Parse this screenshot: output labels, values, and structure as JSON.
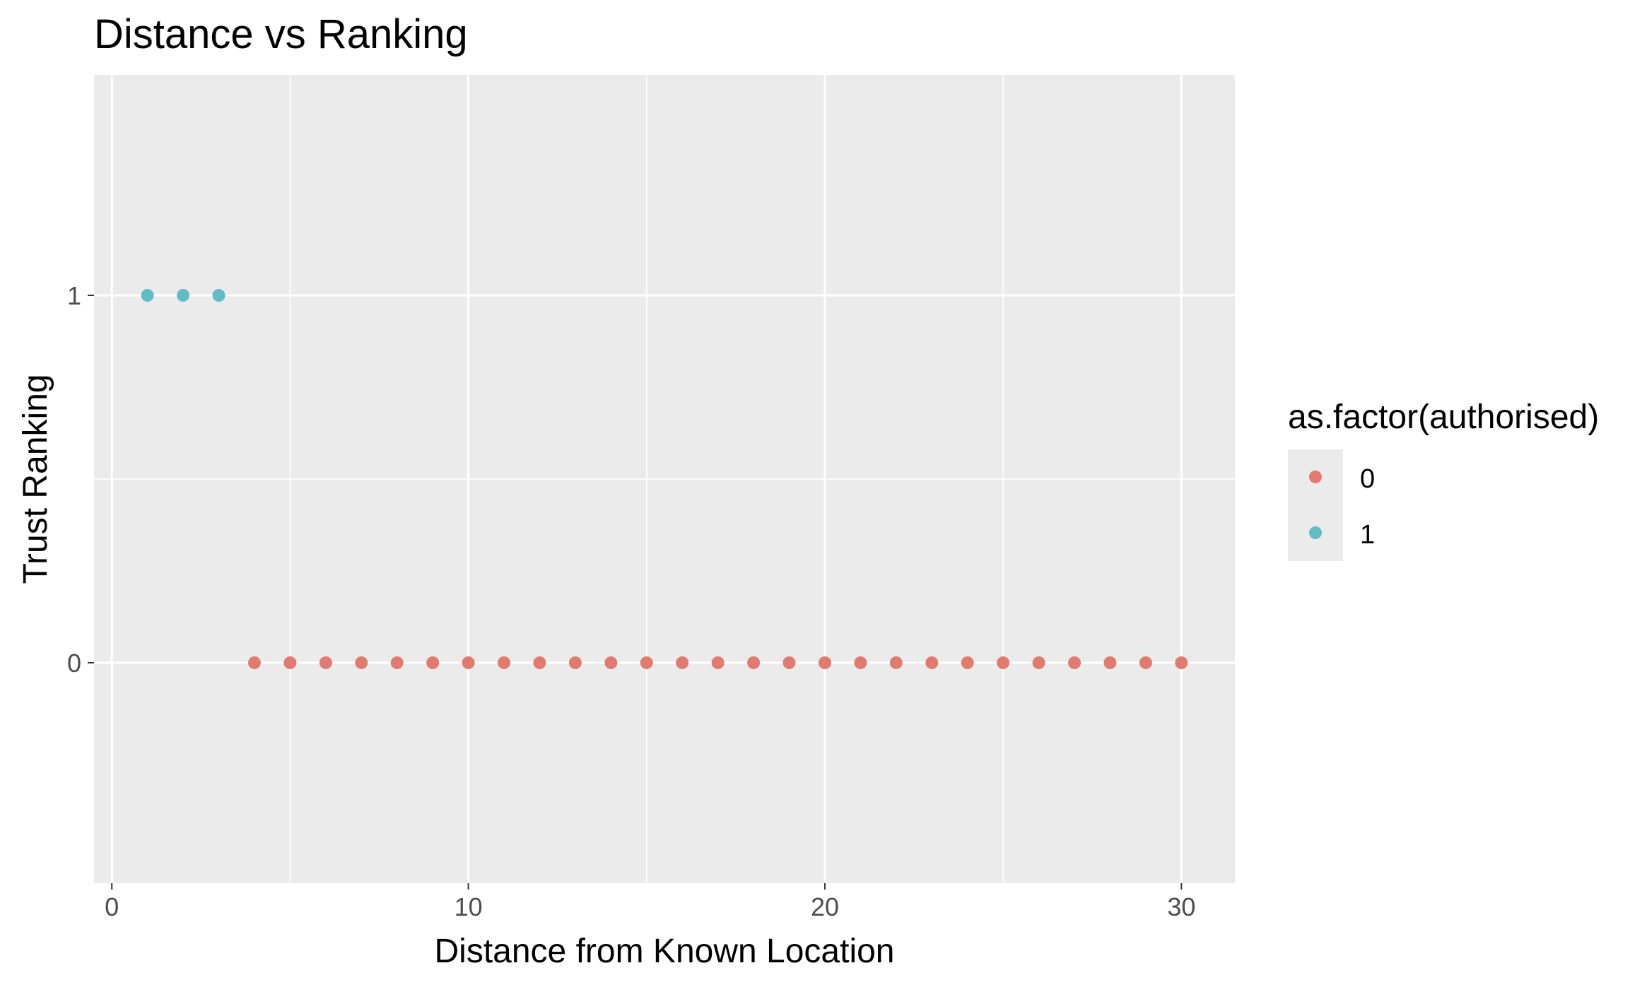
{
  "chart_data": {
    "type": "scatter",
    "title": "Distance vs Ranking",
    "xlabel": "Distance from Known Location",
    "ylabel": "Trust Ranking",
    "xlim": [
      -0.5,
      31.5
    ],
    "ylim": [
      -0.6,
      1.6
    ],
    "xticks": [
      0,
      10,
      20,
      30
    ],
    "xtick_labels": [
      "0",
      "10",
      "20",
      "30"
    ],
    "yticks": [
      0,
      1
    ],
    "ytick_labels": [
      "0",
      "1"
    ],
    "grid": true,
    "background": "#ebebeb",
    "legend": {
      "title": "as.factor(authorised)",
      "placement": "right"
    },
    "series": [
      {
        "name": "0",
        "color": "#e07b6e",
        "x": [
          4,
          5,
          6,
          7,
          8,
          9,
          10,
          11,
          12,
          13,
          14,
          15,
          16,
          17,
          18,
          19,
          20,
          21,
          22,
          23,
          24,
          25,
          26,
          27,
          28,
          29,
          30
        ],
        "y": [
          0,
          0,
          0,
          0,
          0,
          0,
          0,
          0,
          0,
          0,
          0,
          0,
          0,
          0,
          0,
          0,
          0,
          0,
          0,
          0,
          0,
          0,
          0,
          0,
          0,
          0,
          0
        ]
      },
      {
        "name": "1",
        "color": "#62bcc6",
        "x": [
          1,
          2,
          3
        ],
        "y": [
          1,
          1,
          1
        ]
      }
    ]
  }
}
